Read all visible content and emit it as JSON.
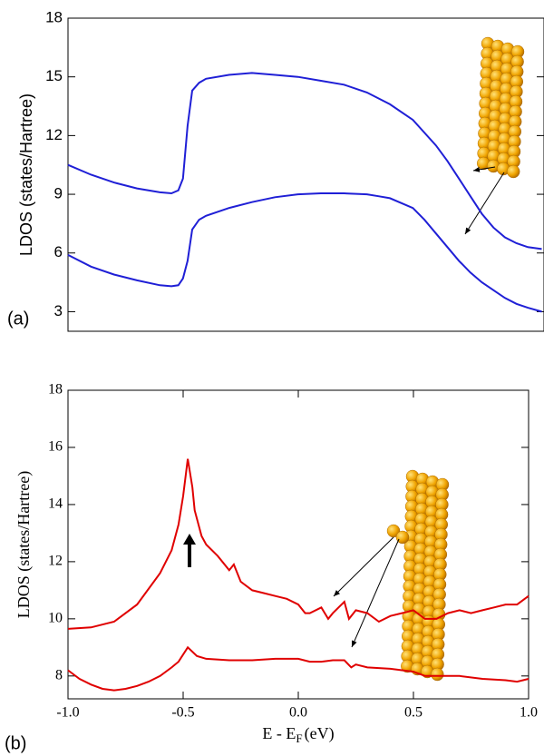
{
  "chart_data": [
    {
      "type": "line",
      "panel_label": "(a)",
      "y_label": "LDOS (states/Hartree)",
      "xlim": [
        -1,
        1.07
      ],
      "ylim": [
        2,
        18
      ],
      "yticks": [
        3,
        6,
        9,
        12,
        15,
        18
      ],
      "series": [
        {
          "color": "#1f1fd6",
          "x": [
            -1,
            -0.9,
            -0.8,
            -0.7,
            -0.6,
            -0.55,
            -0.52,
            -0.5,
            -0.48,
            -0.46,
            -0.43,
            -0.4,
            -0.3,
            -0.2,
            -0.1,
            0,
            0.1,
            0.2,
            0.3,
            0.4,
            0.5,
            0.6,
            0.65,
            0.7,
            0.75,
            0.8,
            0.85,
            0.9,
            0.95,
            1.0,
            1.06
          ],
          "values": [
            10.5,
            10.0,
            9.6,
            9.3,
            9.1,
            9.05,
            9.2,
            9.8,
            12.5,
            14.3,
            14.7,
            14.9,
            15.1,
            15.2,
            15.1,
            15.0,
            14.8,
            14.6,
            14.2,
            13.6,
            12.8,
            11.5,
            10.7,
            9.8,
            8.9,
            8.0,
            7.3,
            6.8,
            6.5,
            6.3,
            6.2
          ]
        },
        {
          "color": "#1f1fd6",
          "x": [
            -1,
            -0.9,
            -0.8,
            -0.7,
            -0.6,
            -0.55,
            -0.52,
            -0.5,
            -0.48,
            -0.46,
            -0.43,
            -0.4,
            -0.3,
            -0.2,
            -0.1,
            0,
            0.1,
            0.2,
            0.3,
            0.35,
            0.4,
            0.5,
            0.55,
            0.6,
            0.65,
            0.7,
            0.75,
            0.8,
            0.85,
            0.9,
            0.95,
            1.0,
            1.06
          ],
          "values": [
            5.9,
            5.3,
            4.9,
            4.6,
            4.35,
            4.3,
            4.35,
            4.7,
            5.6,
            7.2,
            7.7,
            7.9,
            8.3,
            8.6,
            8.85,
            9.0,
            9.05,
            9.05,
            9.0,
            8.9,
            8.8,
            8.3,
            7.7,
            7.0,
            6.3,
            5.6,
            5.0,
            4.5,
            4.1,
            3.7,
            3.4,
            3.2,
            3.0
          ]
        }
      ]
    },
    {
      "type": "line",
      "panel_label": "(b)",
      "y_label": "LDOS (states/Hartree)",
      "x_label": {
        "main": "E - E",
        "sub": "F",
        "unit": "(eV)"
      },
      "xlim": [
        -1,
        1
      ],
      "ylim": [
        7.2,
        18
      ],
      "xticks": [
        {
          "value": -1,
          "label": "-1.0"
        },
        {
          "value": -0.5,
          "label": "-0.5"
        },
        {
          "value": 0,
          "label": "0.0"
        },
        {
          "value": 0.5,
          "label": "0.5"
        },
        {
          "value": 1,
          "label": "1.0"
        }
      ],
      "yticks": [
        8,
        10,
        12,
        14,
        16,
        18
      ],
      "series": [
        {
          "color": "#e00000",
          "x": [
            -1,
            -0.9,
            -0.8,
            -0.7,
            -0.6,
            -0.55,
            -0.52,
            -0.5,
            -0.48,
            -0.46,
            -0.45,
            -0.42,
            -0.4,
            -0.35,
            -0.3,
            -0.28,
            -0.25,
            -0.2,
            -0.15,
            -0.1,
            -0.05,
            0,
            0.03,
            0.05,
            0.1,
            0.13,
            0.15,
            0.2,
            0.22,
            0.25,
            0.3,
            0.35,
            0.4,
            0.45,
            0.5,
            0.55,
            0.6,
            0.65,
            0.7,
            0.75,
            0.8,
            0.85,
            0.9,
            0.95,
            1.0
          ],
          "values": [
            9.65,
            9.7,
            9.9,
            10.5,
            11.6,
            12.4,
            13.3,
            14.3,
            15.6,
            14.6,
            13.8,
            12.9,
            12.6,
            12.2,
            11.7,
            11.9,
            11.3,
            11.0,
            10.9,
            10.8,
            10.7,
            10.5,
            10.2,
            10.2,
            10.4,
            10.0,
            10.2,
            10.6,
            10.0,
            10.3,
            10.2,
            9.9,
            10.1,
            10.2,
            10.3,
            10.0,
            10.0,
            10.2,
            10.3,
            10.2,
            10.3,
            10.4,
            10.5,
            10.5,
            10.8
          ]
        },
        {
          "color": "#e00000",
          "x": [
            -1,
            -0.95,
            -0.9,
            -0.85,
            -0.8,
            -0.75,
            -0.7,
            -0.65,
            -0.6,
            -0.55,
            -0.52,
            -0.48,
            -0.44,
            -0.4,
            -0.3,
            -0.2,
            -0.1,
            0,
            0.05,
            0.1,
            0.15,
            0.2,
            0.23,
            0.25,
            0.3,
            0.4,
            0.5,
            0.55,
            0.6,
            0.7,
            0.8,
            0.9,
            0.95,
            1.0
          ],
          "values": [
            8.2,
            7.9,
            7.7,
            7.55,
            7.5,
            7.55,
            7.65,
            7.8,
            8.0,
            8.3,
            8.5,
            9.0,
            8.7,
            8.6,
            8.55,
            8.55,
            8.6,
            8.6,
            8.5,
            8.5,
            8.55,
            8.55,
            8.3,
            8.4,
            8.3,
            8.25,
            8.15,
            8.0,
            8.0,
            8.0,
            7.9,
            7.85,
            7.8,
            7.9
          ]
        }
      ]
    }
  ]
}
